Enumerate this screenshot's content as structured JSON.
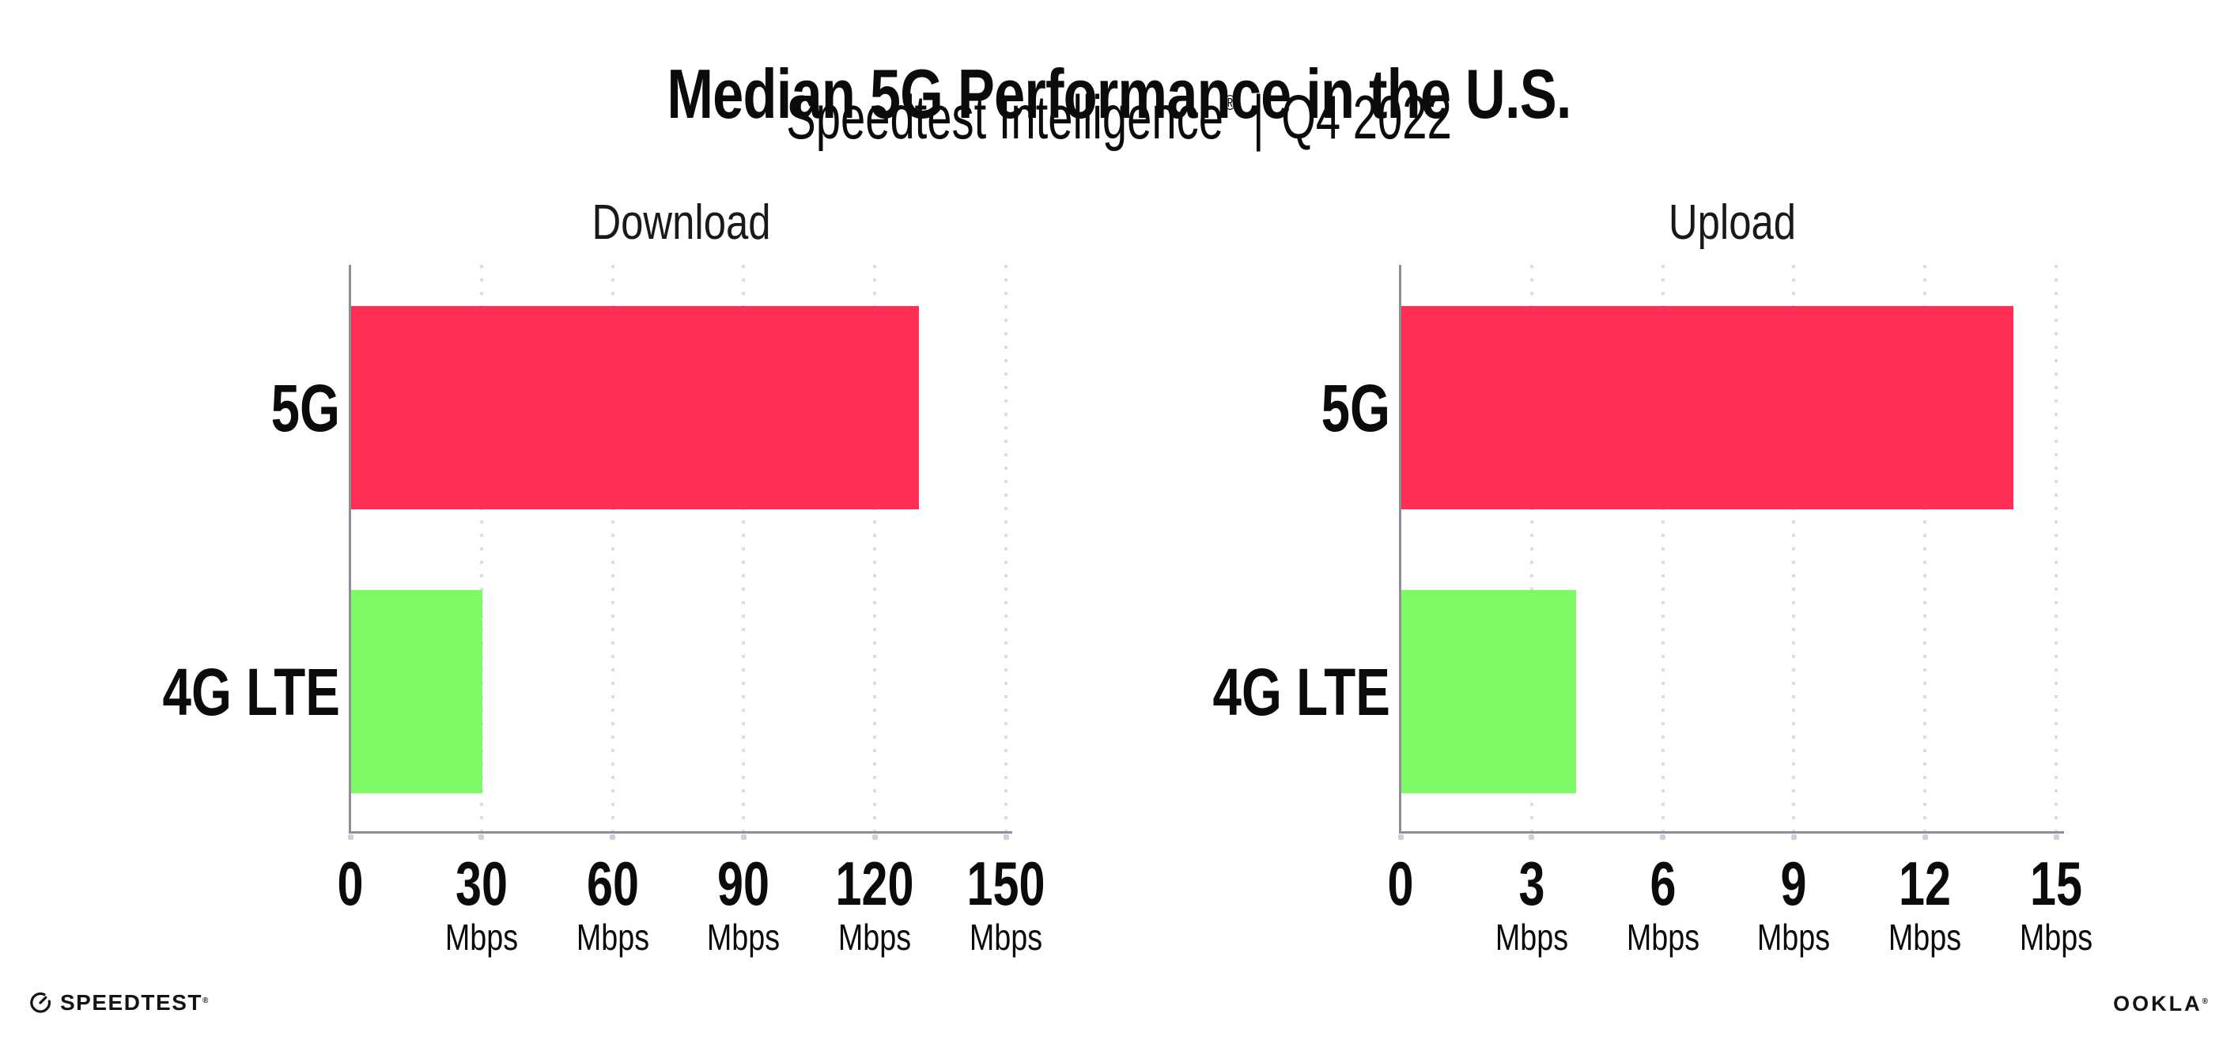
{
  "header": {
    "title": "Median 5G Performance in the U.S.",
    "subtitle_brand": "Speedtest Intelligence",
    "subtitle_reg": "®",
    "subtitle_separator": "|",
    "subtitle_period": "Q4 2022"
  },
  "chart_data": [
    {
      "type": "bar",
      "orientation": "horizontal",
      "title": "Download",
      "categories": [
        "5G",
        "4G LTE"
      ],
      "values": [
        130,
        30
      ],
      "unit": "Mbps",
      "xlim": [
        0,
        150
      ],
      "xticks": [
        0,
        30,
        60,
        90,
        120,
        150
      ],
      "xtick_unit_label": "Mbps",
      "bar_colors": [
        "#FF2E55",
        "#7EFA66"
      ],
      "grid": "dotted-vertical-major",
      "legend": "none"
    },
    {
      "type": "bar",
      "orientation": "horizontal",
      "title": "Upload",
      "categories": [
        "5G",
        "4G LTE"
      ],
      "values": [
        14,
        4
      ],
      "unit": "Mbps",
      "xlim": [
        0,
        15
      ],
      "xticks": [
        0,
        3,
        6,
        9,
        12,
        15
      ],
      "xtick_unit_label": "Mbps",
      "bar_colors": [
        "#FF2E55",
        "#7EFA66"
      ],
      "grid": "dotted-vertical-major",
      "legend": "none"
    }
  ],
  "colors": {
    "bar_5g": "#FF2E55",
    "bar_4g_lte": "#7EFA66",
    "axis": "#8E8E96",
    "gridline": "#DCDCE8",
    "text": "#0B0B0C"
  },
  "footer": {
    "speedtest_label": "SPEEDTEST",
    "speedtest_reg": "®",
    "speedtest_icon": "gauge-icon",
    "ookla_label": "OOKLA",
    "ookla_reg": "®"
  }
}
